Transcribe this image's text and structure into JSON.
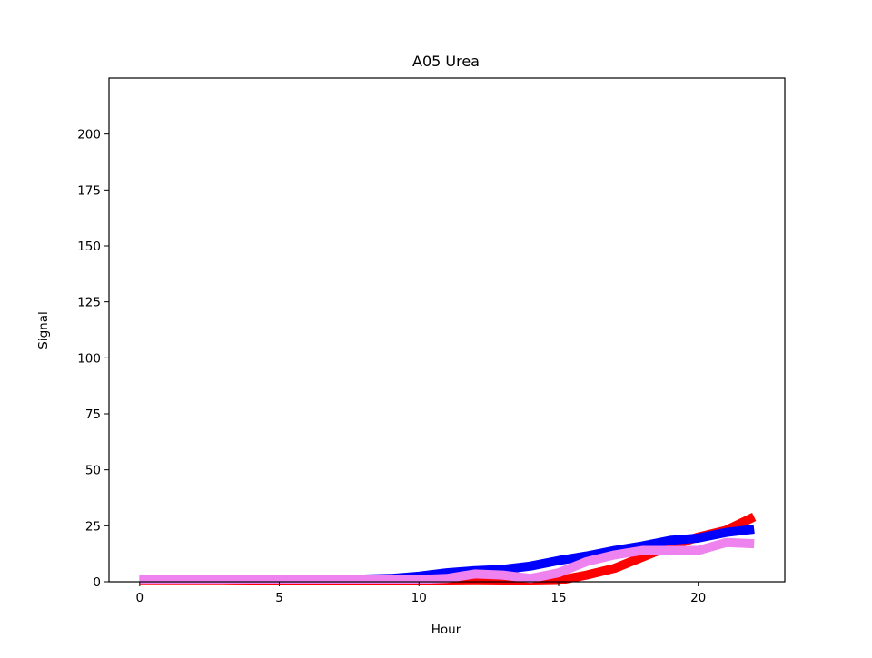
{
  "chart_data": {
    "type": "line",
    "title": "A05 Urea",
    "xlabel": "Hour",
    "ylabel": "Signal",
    "xlim": [
      -1.1,
      23.1
    ],
    "ylim": [
      0,
      225
    ],
    "xticks": [
      0,
      5,
      10,
      15,
      20
    ],
    "yticks": [
      0,
      25,
      50,
      75,
      100,
      125,
      150,
      175,
      200
    ],
    "grid": false,
    "legend": false,
    "x": [
      0,
      1,
      2,
      3,
      4,
      5,
      6,
      7,
      8,
      9,
      10,
      11,
      12,
      13,
      14,
      15,
      16,
      17,
      18,
      19,
      20,
      21,
      22
    ],
    "series": [
      {
        "color": "#ff0000",
        "values": [
          0.5,
          0.5,
          0.5,
          0.5,
          0.4,
          0.4,
          0.4,
          0.4,
          0.4,
          0.4,
          0.4,
          0.4,
          0.5,
          0.4,
          0.4,
          0.6,
          3,
          6,
          11,
          16,
          20,
          23,
          29
        ]
      },
      {
        "color": "#0000ff",
        "values": [
          0.8,
          0.8,
          0.8,
          0.8,
          0.8,
          0.8,
          0.8,
          0.8,
          1.2,
          1.5,
          2.5,
          4,
          5,
          5.5,
          7,
          9.5,
          11.5,
          14,
          16,
          18.5,
          19.5,
          22,
          23.5
        ]
      },
      {
        "color": "#ee82ee",
        "values": [
          1,
          1,
          1,
          1,
          1,
          1,
          1,
          1,
          1,
          1,
          1,
          1.5,
          3.5,
          3,
          1.5,
          4,
          9,
          12,
          14,
          14,
          14,
          17.5,
          17
        ]
      }
    ]
  }
}
